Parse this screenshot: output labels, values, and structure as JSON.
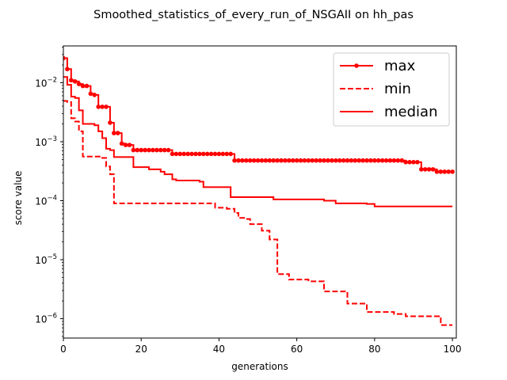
{
  "chart_data": {
    "type": "line",
    "title": "Smoothed_statistics_of_every_run_of_NSGAII on hh_pas",
    "xlabel": "generations",
    "ylabel": "score value",
    "xlim": [
      0,
      101
    ],
    "ylim": [
      4.7e-07,
      0.042
    ],
    "yscale": "log",
    "grid": false,
    "legend_position": "top-right",
    "x_ticks": [
      0,
      20,
      40,
      60,
      80,
      100
    ],
    "y_ticks": [
      1e-06,
      1e-05,
      0.0001,
      0.001,
      0.01
    ],
    "y_tick_labels": [
      {
        "base": "10",
        "exp": "−6"
      },
      {
        "base": "10",
        "exp": "−5"
      },
      {
        "base": "10",
        "exp": "−4"
      },
      {
        "base": "10",
        "exp": "−3"
      },
      {
        "base": "10",
        "exp": "−2"
      }
    ],
    "color": "#ff0000",
    "series": [
      {
        "name": "max",
        "style": "solid",
        "marker": "dot",
        "steps": [
          [
            0,
            0.026
          ],
          [
            1,
            0.017
          ],
          [
            2,
            0.011
          ],
          [
            3,
            0.0105
          ],
          [
            4,
            0.0095
          ],
          [
            5,
            0.0088
          ],
          [
            6,
            0.0088
          ],
          [
            7,
            0.0065
          ],
          [
            8,
            0.0062
          ],
          [
            9,
            0.0039
          ],
          [
            11,
            0.0039
          ],
          [
            12,
            0.0021
          ],
          [
            13,
            0.0014
          ],
          [
            15,
            0.00093
          ],
          [
            16,
            0.00088
          ],
          [
            18,
            0.00072
          ],
          [
            28,
            0.00062
          ],
          [
            44,
            0.00048
          ],
          [
            88,
            0.00045
          ],
          [
            92,
            0.00034
          ],
          [
            96,
            0.00031
          ],
          [
            100,
            0.00031
          ]
        ]
      },
      {
        "name": "min",
        "style": "dashed",
        "marker": "none",
        "steps": [
          [
            0,
            0.0049
          ],
          [
            1,
            0.0047
          ],
          [
            2,
            0.0025
          ],
          [
            3,
            0.0022
          ],
          [
            4,
            0.0015
          ],
          [
            5,
            0.00056
          ],
          [
            9,
            0.00056
          ],
          [
            10,
            0.00053
          ],
          [
            11,
            0.00038
          ],
          [
            12,
            0.00028
          ],
          [
            13,
            9e-05
          ],
          [
            39,
            7.6e-05
          ],
          [
            42,
            7.3e-05
          ],
          [
            44,
            6.2e-05
          ],
          [
            45,
            5.1e-05
          ],
          [
            47,
            4.9e-05
          ],
          [
            48,
            4e-05
          ],
          [
            51,
            3.1e-05
          ],
          [
            53,
            2.2e-05
          ],
          [
            55,
            5.7e-06
          ],
          [
            58,
            4.6e-06
          ],
          [
            63,
            4.3e-06
          ],
          [
            67,
            2.9e-06
          ],
          [
            72,
            2.9e-06
          ],
          [
            73,
            1.8e-06
          ],
          [
            78,
            1.3e-06
          ],
          [
            83,
            1.3e-06
          ],
          [
            85,
            1.2e-06
          ],
          [
            88,
            1.1e-06
          ],
          [
            97,
            7.8e-07
          ],
          [
            100,
            7.8e-07
          ]
        ]
      },
      {
        "name": "median",
        "style": "solid",
        "marker": "none",
        "steps": [
          [
            0,
            0.0125
          ],
          [
            1,
            0.0092
          ],
          [
            2,
            0.0058
          ],
          [
            3,
            0.0055
          ],
          [
            4,
            0.0034
          ],
          [
            5,
            0.002
          ],
          [
            8,
            0.0019
          ],
          [
            9,
            0.0015
          ],
          [
            10,
            0.00115
          ],
          [
            11,
            0.00076
          ],
          [
            12,
            0.00072
          ],
          [
            13,
            0.00055
          ],
          [
            18,
            0.00037
          ],
          [
            21,
            0.00037
          ],
          [
            22,
            0.00034
          ],
          [
            25,
            0.00031
          ],
          [
            26,
            0.00028
          ],
          [
            28,
            0.00023
          ],
          [
            29,
            0.00022
          ],
          [
            35,
            0.00021
          ],
          [
            36,
            0.00017
          ],
          [
            43,
            0.000115
          ],
          [
            54,
            0.000105
          ],
          [
            67,
            0.0001
          ],
          [
            70,
            9e-05
          ],
          [
            77,
            9e-05
          ],
          [
            78,
            8.8e-05
          ],
          [
            80,
            8e-05
          ],
          [
            100,
            8e-05
          ]
        ]
      }
    ]
  }
}
